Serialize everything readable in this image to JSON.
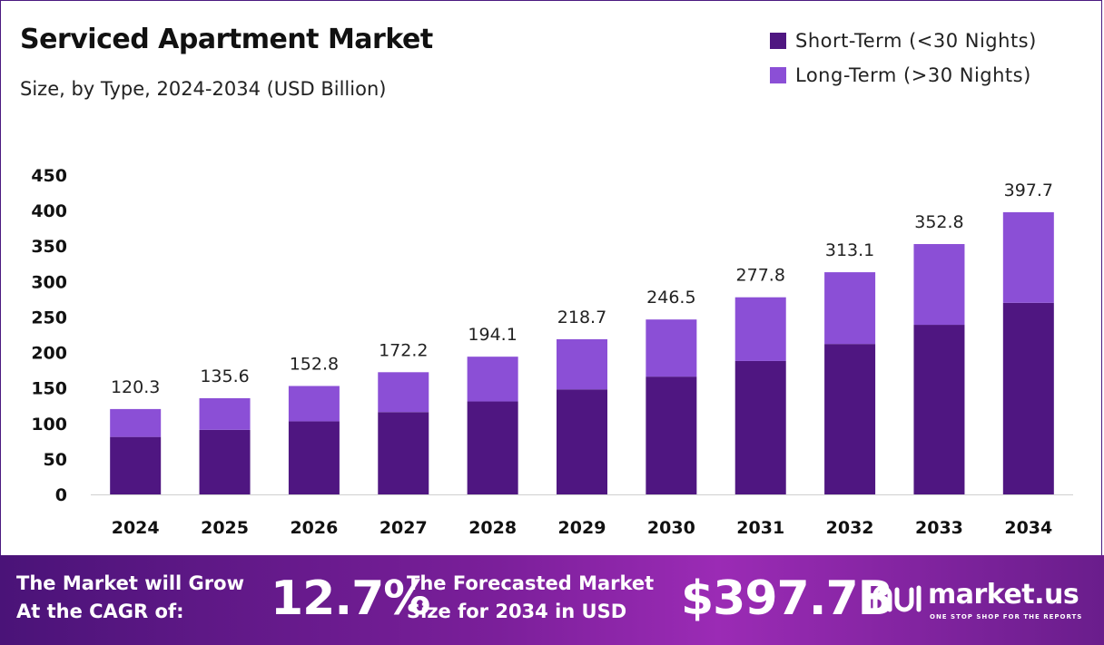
{
  "header": {
    "title": "Serviced Apartment Market",
    "subtitle": "Size, by Type, 2024-2034 (USD Billion)"
  },
  "legend": [
    {
      "label": "Short-Term (<30 Nights)",
      "color": "#4f1681"
    },
    {
      "label": "Long-Term (>30 Nights)",
      "color": "#8b4fd6"
    }
  ],
  "chart_data": {
    "type": "bar",
    "stacked": true,
    "categories": [
      "2024",
      "2025",
      "2026",
      "2027",
      "2028",
      "2029",
      "2030",
      "2031",
      "2032",
      "2033",
      "2034"
    ],
    "series": [
      {
        "name": "Short-Term (<30 Nights)",
        "color": "#4f1681",
        "values": [
          81.0,
          91.0,
          103.0,
          116.0,
          131.0,
          148.0,
          166.0,
          188.0,
          212.0,
          239.0,
          270.0
        ]
      },
      {
        "name": "Long-Term (>30 Nights)",
        "color": "#8b4fd6",
        "values": [
          39.3,
          44.6,
          49.8,
          56.2,
          63.1,
          70.7,
          80.5,
          89.8,
          101.1,
          113.8,
          127.7
        ]
      }
    ],
    "totals": [
      "120.3",
      "135.6",
      "152.8",
      "172.2",
      "194.1",
      "218.7",
      "246.5",
      "277.8",
      "313.1",
      "352.8",
      "397.7"
    ],
    "yticks": [
      0,
      50,
      100,
      150,
      200,
      250,
      300,
      350,
      400,
      450
    ],
    "ylim": [
      0,
      450
    ],
    "grid": false
  },
  "footer": {
    "cagr_label": "The Market will Grow At the CAGR of:",
    "cagr_value": "12.7%",
    "size_label": "The Forecasted Market Size for 2034 in USD",
    "size_value": "$397.7B",
    "brand_name": "market.us",
    "brand_tagline": "ONE STOP SHOP FOR THE REPORTS",
    "brand_icon": "market-us-logo-icon"
  }
}
